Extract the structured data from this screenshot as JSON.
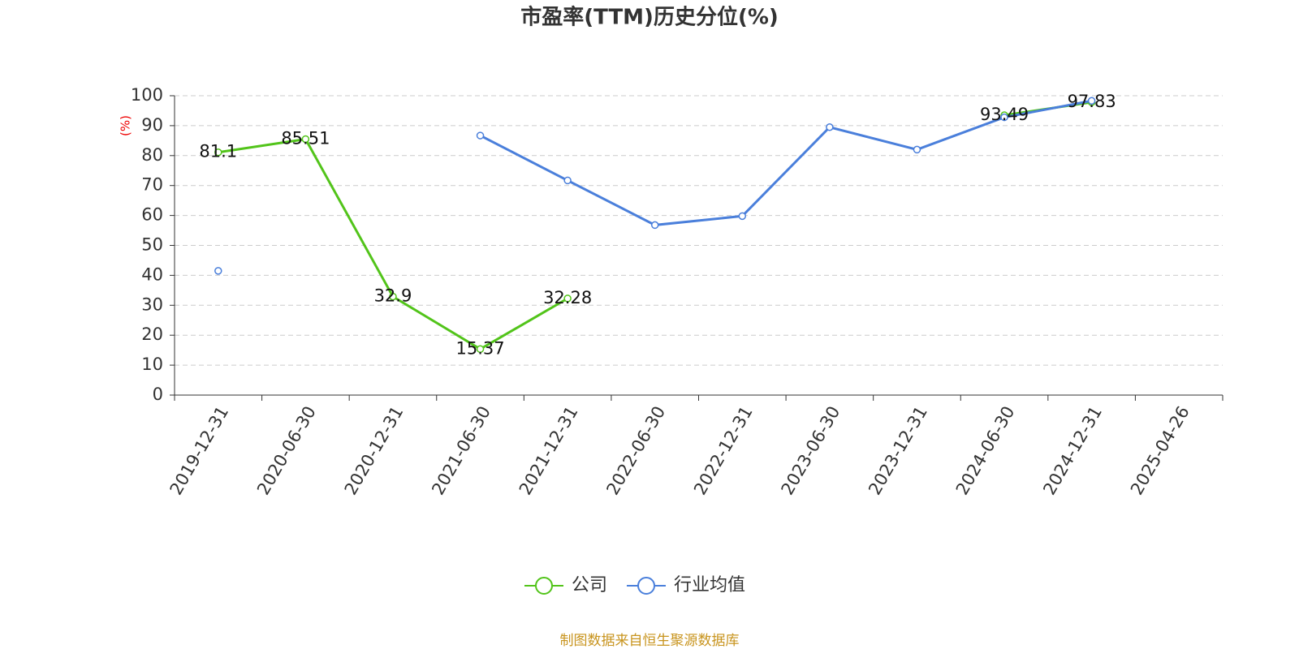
{
  "chart_data": {
    "type": "line",
    "title": "市盈率(TTM)历史分位(%)",
    "y_label": "(%)",
    "categories": [
      "2019-12-31",
      "2020-06-30",
      "2020-12-31",
      "2021-06-30",
      "2021-12-31",
      "2022-06-30",
      "2022-12-31",
      "2023-06-30",
      "2023-12-31",
      "2024-06-30",
      "2024-12-31",
      "2025-04-26"
    ],
    "series": [
      {
        "name": "公司",
        "color": "#52c41a",
        "values": [
          81.1,
          85.51,
          32.9,
          15.37,
          32.28,
          null,
          null,
          null,
          null,
          93.49,
          97.83,
          null
        ],
        "show_labels": true
      },
      {
        "name": "行业均值",
        "color": "#4a7fdb",
        "values": [
          41.5,
          null,
          null,
          86.7,
          71.7,
          56.8,
          59.8,
          89.5,
          82.0,
          92.8,
          98.3,
          null
        ],
        "show_labels": false
      }
    ],
    "ylim": [
      0,
      100
    ],
    "yticks": [
      0,
      10,
      20,
      30,
      40,
      50,
      60,
      70,
      80,
      90,
      100
    ],
    "grid": true,
    "legend": "bottom",
    "source": "制图数据来自恒生聚源数据库"
  }
}
